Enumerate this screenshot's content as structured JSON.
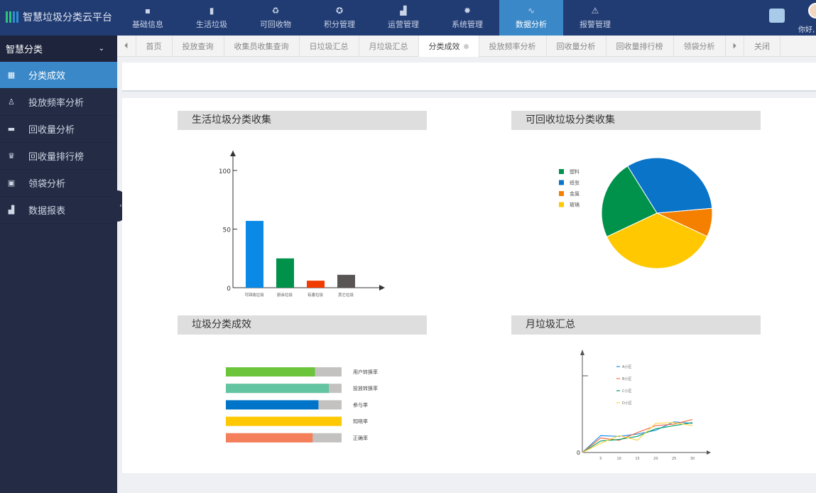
{
  "app": {
    "title": "智慧垃圾分类云平台",
    "greeting": "你好,"
  },
  "topnav": [
    {
      "label": "基础信息",
      "icon": "chat-icon"
    },
    {
      "label": "生活垃圾",
      "icon": "trash-icon"
    },
    {
      "label": "可回收物",
      "icon": "recycle-icon"
    },
    {
      "label": "积分管理",
      "icon": "award-icon"
    },
    {
      "label": "运营管理",
      "icon": "bar-chart-icon"
    },
    {
      "label": "系统管理",
      "icon": "gear-icon"
    },
    {
      "label": "数据分析",
      "icon": "line-chart-icon",
      "active": true
    },
    {
      "label": "报警管理",
      "icon": "alarm-icon"
    }
  ],
  "sidebar": {
    "header": "智慧分类",
    "items": [
      {
        "label": "分类成效",
        "icon": "grid-icon",
        "active": true
      },
      {
        "label": "投放频率分析",
        "icon": "person-icon"
      },
      {
        "label": "回收量分析",
        "icon": "truck-icon"
      },
      {
        "label": "回收量排行榜",
        "icon": "trophy-icon"
      },
      {
        "label": "领袋分析",
        "icon": "bag-icon"
      },
      {
        "label": "数据报表",
        "icon": "bar-chart-icon"
      }
    ]
  },
  "tabs": {
    "items": [
      "首页",
      "投放查询",
      "收集员收集查询",
      "日垃圾汇总",
      "月垃圾汇总",
      "分类成效",
      "投放频率分析",
      "回收量分析",
      "回收量排行榜",
      "领袋分析"
    ],
    "active": "分类成效",
    "close_label": "关闭"
  },
  "panels": {
    "p1": "生活垃圾分类收集",
    "p2": "可回收垃圾分类收集",
    "p3": "垃圾分类成效",
    "p4": "月垃圾汇总"
  },
  "chart_data": [
    {
      "type": "bar",
      "title": "生活垃圾分类收集",
      "categories": [
        "可回收垃圾",
        "厨余垃圾",
        "有害垃圾",
        "其它垃圾"
      ],
      "values": [
        57,
        25,
        6,
        11
      ],
      "colors": [
        "#0a8ae6",
        "#00914b",
        "#f03c00",
        "#5a5555"
      ],
      "ylim": [
        0,
        110
      ],
      "yticks": [
        0,
        50,
        100
      ]
    },
    {
      "type": "pie",
      "title": "可回收垃圾分类收集",
      "categories": [
        "塑料",
        "纸张",
        "金属",
        "玻璃"
      ],
      "values": [
        23.1,
        32.5,
        8.3,
        36.1
      ],
      "colors": [
        "#00914b",
        "#0a74c9",
        "#f58000",
        "#ffc800"
      ],
      "legend": "left"
    },
    {
      "type": "bar",
      "orientation": "horizontal",
      "title": "垃圾分类成效",
      "categories": [
        "用户转换率",
        "投放转换率",
        "参与率",
        "知晓率",
        "正确率"
      ],
      "values": [
        77,
        89,
        80,
        100,
        75
      ],
      "max": 100,
      "colors": [
        "#6cc43a",
        "#62c4a0",
        "#0074c8",
        "#ffc800",
        "#f57f5a"
      ]
    },
    {
      "type": "line",
      "title": "月垃圾汇总",
      "x": [
        0,
        5,
        10,
        15,
        20,
        25,
        30
      ],
      "xticks": [
        5,
        10,
        15,
        20,
        25,
        30
      ],
      "yticks": [
        "0",
        ""
      ],
      "ylim": [
        0,
        130
      ],
      "series": [
        {
          "name": "A小区",
          "values": [
            0,
            22,
            21,
            24,
            29,
            40,
            38
          ],
          "color": "#1e8ee8"
        },
        {
          "name": "B小区",
          "values": [
            0,
            19,
            16,
            26,
            35,
            37,
            43
          ],
          "color": "#f26a45"
        },
        {
          "name": "C小区",
          "values": [
            0,
            15,
            17,
            21,
            31,
            35,
            39
          ],
          "color": "#00a060"
        },
        {
          "name": "D小区",
          "values": [
            0,
            12,
            22,
            16,
            38,
            39,
            35
          ],
          "color": "#ffd54a"
        }
      ]
    }
  ]
}
